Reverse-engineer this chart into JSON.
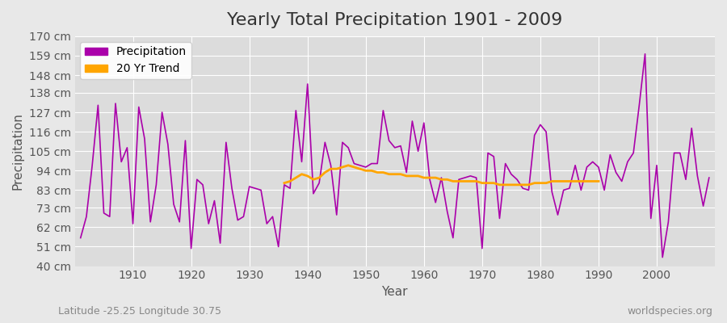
{
  "title": "Yearly Total Precipitation 1901 - 2009",
  "xlabel": "Year",
  "ylabel": "Precipitation",
  "lat_lon_label": "Latitude -25.25 Longitude 30.75",
  "source_label": "worldspecies.org",
  "years": [
    1901,
    1902,
    1903,
    1904,
    1905,
    1906,
    1907,
    1908,
    1909,
    1910,
    1911,
    1912,
    1913,
    1914,
    1915,
    1916,
    1917,
    1918,
    1919,
    1920,
    1921,
    1922,
    1923,
    1924,
    1925,
    1926,
    1927,
    1928,
    1929,
    1930,
    1931,
    1932,
    1933,
    1934,
    1935,
    1936,
    1937,
    1938,
    1939,
    1940,
    1941,
    1942,
    1943,
    1944,
    1945,
    1946,
    1947,
    1948,
    1949,
    1950,
    1951,
    1952,
    1953,
    1954,
    1955,
    1956,
    1957,
    1958,
    1959,
    1960,
    1961,
    1962,
    1963,
    1964,
    1965,
    1966,
    1967,
    1968,
    1969,
    1970,
    1971,
    1972,
    1973,
    1974,
    1975,
    1976,
    1977,
    1978,
    1979,
    1980,
    1981,
    1982,
    1983,
    1984,
    1985,
    1986,
    1987,
    1988,
    1989,
    1990,
    1991,
    1992,
    1993,
    1994,
    1995,
    1996,
    1997,
    1998,
    1999,
    2000,
    2001,
    2002,
    2003,
    2004,
    2005,
    2006,
    2007,
    2008,
    2009
  ],
  "precip": [
    56,
    68,
    97,
    131,
    70,
    68,
    132,
    99,
    107,
    64,
    130,
    112,
    65,
    86,
    127,
    109,
    75,
    65,
    111,
    50,
    89,
    86,
    64,
    77,
    53,
    110,
    84,
    66,
    68,
    85,
    84,
    83,
    64,
    68,
    51,
    86,
    84,
    128,
    99,
    143,
    81,
    87,
    110,
    97,
    69,
    110,
    107,
    98,
    97,
    96,
    98,
    98,
    128,
    111,
    107,
    108,
    93,
    122,
    105,
    121,
    89,
    76,
    90,
    71,
    56,
    89,
    90,
    91,
    90,
    50,
    104,
    102,
    67,
    98,
    92,
    89,
    84,
    83,
    114,
    120,
    116,
    82,
    69,
    83,
    84,
    97,
    83,
    96,
    99,
    96,
    83,
    103,
    93,
    88,
    99,
    104,
    131,
    160,
    67,
    97,
    45,
    65,
    104,
    104,
    89,
    118,
    91,
    74,
    90
  ],
  "trend_start_year": 1936,
  "trend_years": [
    1936,
    1937,
    1938,
    1939,
    1940,
    1941,
    1942,
    1943,
    1944,
    1945,
    1946,
    1947,
    1948,
    1949,
    1950,
    1951,
    1952,
    1953,
    1954,
    1955,
    1956,
    1957,
    1958,
    1959,
    1960,
    1961,
    1962,
    1963,
    1964,
    1965,
    1966,
    1967,
    1968,
    1969,
    1970,
    1971,
    1972,
    1973,
    1974,
    1975,
    1976,
    1977,
    1978,
    1979,
    1980,
    1981,
    1982,
    1983,
    1984,
    1985,
    1986,
    1987,
    1988,
    1989,
    1990
  ],
  "trend_values": [
    87,
    88,
    90,
    92,
    91,
    89,
    90,
    93,
    95,
    95,
    96,
    97,
    96,
    95,
    94,
    94,
    93,
    93,
    92,
    92,
    92,
    91,
    91,
    91,
    90,
    90,
    90,
    89,
    89,
    88,
    88,
    88,
    88,
    88,
    87,
    87,
    87,
    86,
    86,
    86,
    86,
    86,
    86,
    87,
    87,
    87,
    88,
    88,
    88,
    88,
    88,
    88,
    88,
    88,
    88
  ],
  "precip_color": "#AA00AA",
  "trend_color": "#FFA500",
  "bg_color": "#E8E8E8",
  "plot_bg_color": "#DCDCDC",
  "grid_color": "#FFFFFF",
  "ylim": [
    40,
    170
  ],
  "yticks": [
    40,
    51,
    62,
    73,
    83,
    94,
    105,
    116,
    127,
    138,
    148,
    159,
    170
  ],
  "ytick_labels": [
    "40 cm",
    "51 cm",
    "62 cm",
    "73 cm",
    "83 cm",
    "94 cm",
    "105 cm",
    "116 cm",
    "127 cm",
    "138 cm",
    "148 cm",
    "159 cm",
    "170 cm"
  ],
  "xlim": [
    1900,
    2010
  ],
  "xticks": [
    1910,
    1920,
    1930,
    1940,
    1950,
    1960,
    1970,
    1980,
    1990,
    2000
  ],
  "title_fontsize": 16,
  "axis_label_fontsize": 11,
  "tick_label_fontsize": 10,
  "legend_fontsize": 10,
  "small_label_fontsize": 9
}
